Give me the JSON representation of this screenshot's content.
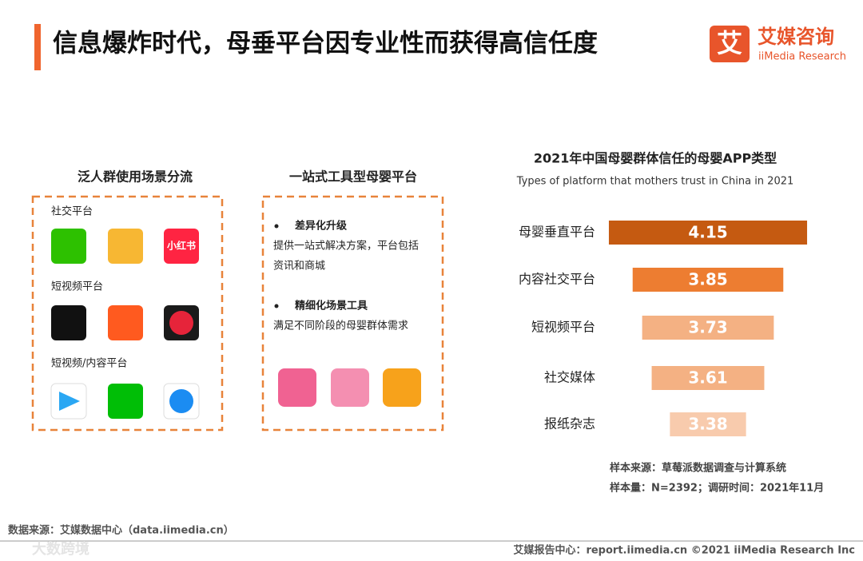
{
  "header": {
    "title": "信息爆炸时代，母垂平台因专业性而获得高信任度",
    "logo_mark": "艾",
    "logo_cn": "艾媒咨询",
    "logo_en": "iiMedia Research"
  },
  "left_panel": {
    "title": "泛人群使用场景分流",
    "groups": [
      {
        "label": "社交平台",
        "icon_text": "小红书"
      },
      {
        "label": "短视频平台"
      },
      {
        "label": "短视频/内容平台"
      }
    ]
  },
  "middle_panel": {
    "title": "一站式工具型母婴平台",
    "items": [
      {
        "heading": "差异化升级",
        "lines": [
          "提供一站式解决方案，平台包括",
          "资讯和商城"
        ]
      },
      {
        "heading": "精细化场景工具",
        "lines": [
          "满足不同阶段的母婴群体需求"
        ]
      }
    ]
  },
  "chart_data": {
    "type": "bar",
    "orientation": "horizontal",
    "title": "2021年中国母婴群体信任的母婴APP类型",
    "subtitle": "Types of platform that mothers trust in China in 2021",
    "categories": [
      "母婴垂直平台",
      "内容社交平台",
      "短视频平台",
      "社交媒体",
      "报纸杂志"
    ],
    "values": [
      4.15,
      3.85,
      3.73,
      3.61,
      3.38
    ],
    "colors": [
      "#c55a11",
      "#ed7d31",
      "#f4b183",
      "#f4b183",
      "#f8cbad"
    ],
    "xlim": [
      2.9,
      4.2
    ]
  },
  "notes": [
    "样本来源：草莓派数据调查与计算系统",
    "样本量：N=2392；调研时间：2021年11月"
  ],
  "footer": {
    "source": "数据来源：艾媒数据中心（data.iimedia.cn）",
    "right": "艾媒报告中心：report.iimedia.cn   ©2021  iiMedia Research  Inc",
    "watermark": "大数跨境"
  }
}
